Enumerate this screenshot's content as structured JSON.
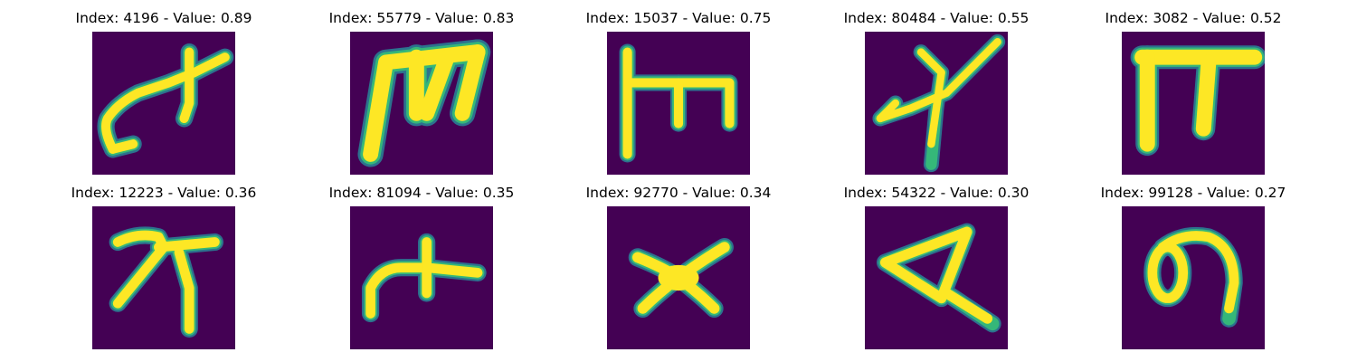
{
  "colors": {
    "background": "#440154",
    "stroke": "#fde725",
    "edge_mid": "#35b779",
    "edge_outer": "#2c728e"
  },
  "figure": {
    "panels": [
      {
        "title": "Index: 4196 - Value: 0.89",
        "glyph": "cursive-stroke-icon"
      },
      {
        "title": "Index: 55779 - Value: 0.83",
        "glyph": "m-shape-icon"
      },
      {
        "title": "Index: 15037 - Value: 0.75",
        "glyph": "comb-shape-icon"
      },
      {
        "title": "Index: 80484 - Value: 0.55",
        "glyph": "cross-stroke-icon"
      },
      {
        "title": "Index: 3082 - Value: 0.52",
        "glyph": "pi-shape-icon"
      },
      {
        "title": "Index: 12223 - Value: 0.36",
        "glyph": "hook-cross-icon"
      },
      {
        "title": "Index: 81094 - Value: 0.35",
        "glyph": "arch-cross-icon"
      },
      {
        "title": "Index: 92770 - Value: 0.34",
        "glyph": "x-shape-icon"
      },
      {
        "title": "Index: 54322 - Value: 0.30",
        "glyph": "triangle-shape-icon"
      },
      {
        "title": "Index: 99128 - Value: 0.27",
        "glyph": "loop-shape-icon"
      }
    ]
  }
}
